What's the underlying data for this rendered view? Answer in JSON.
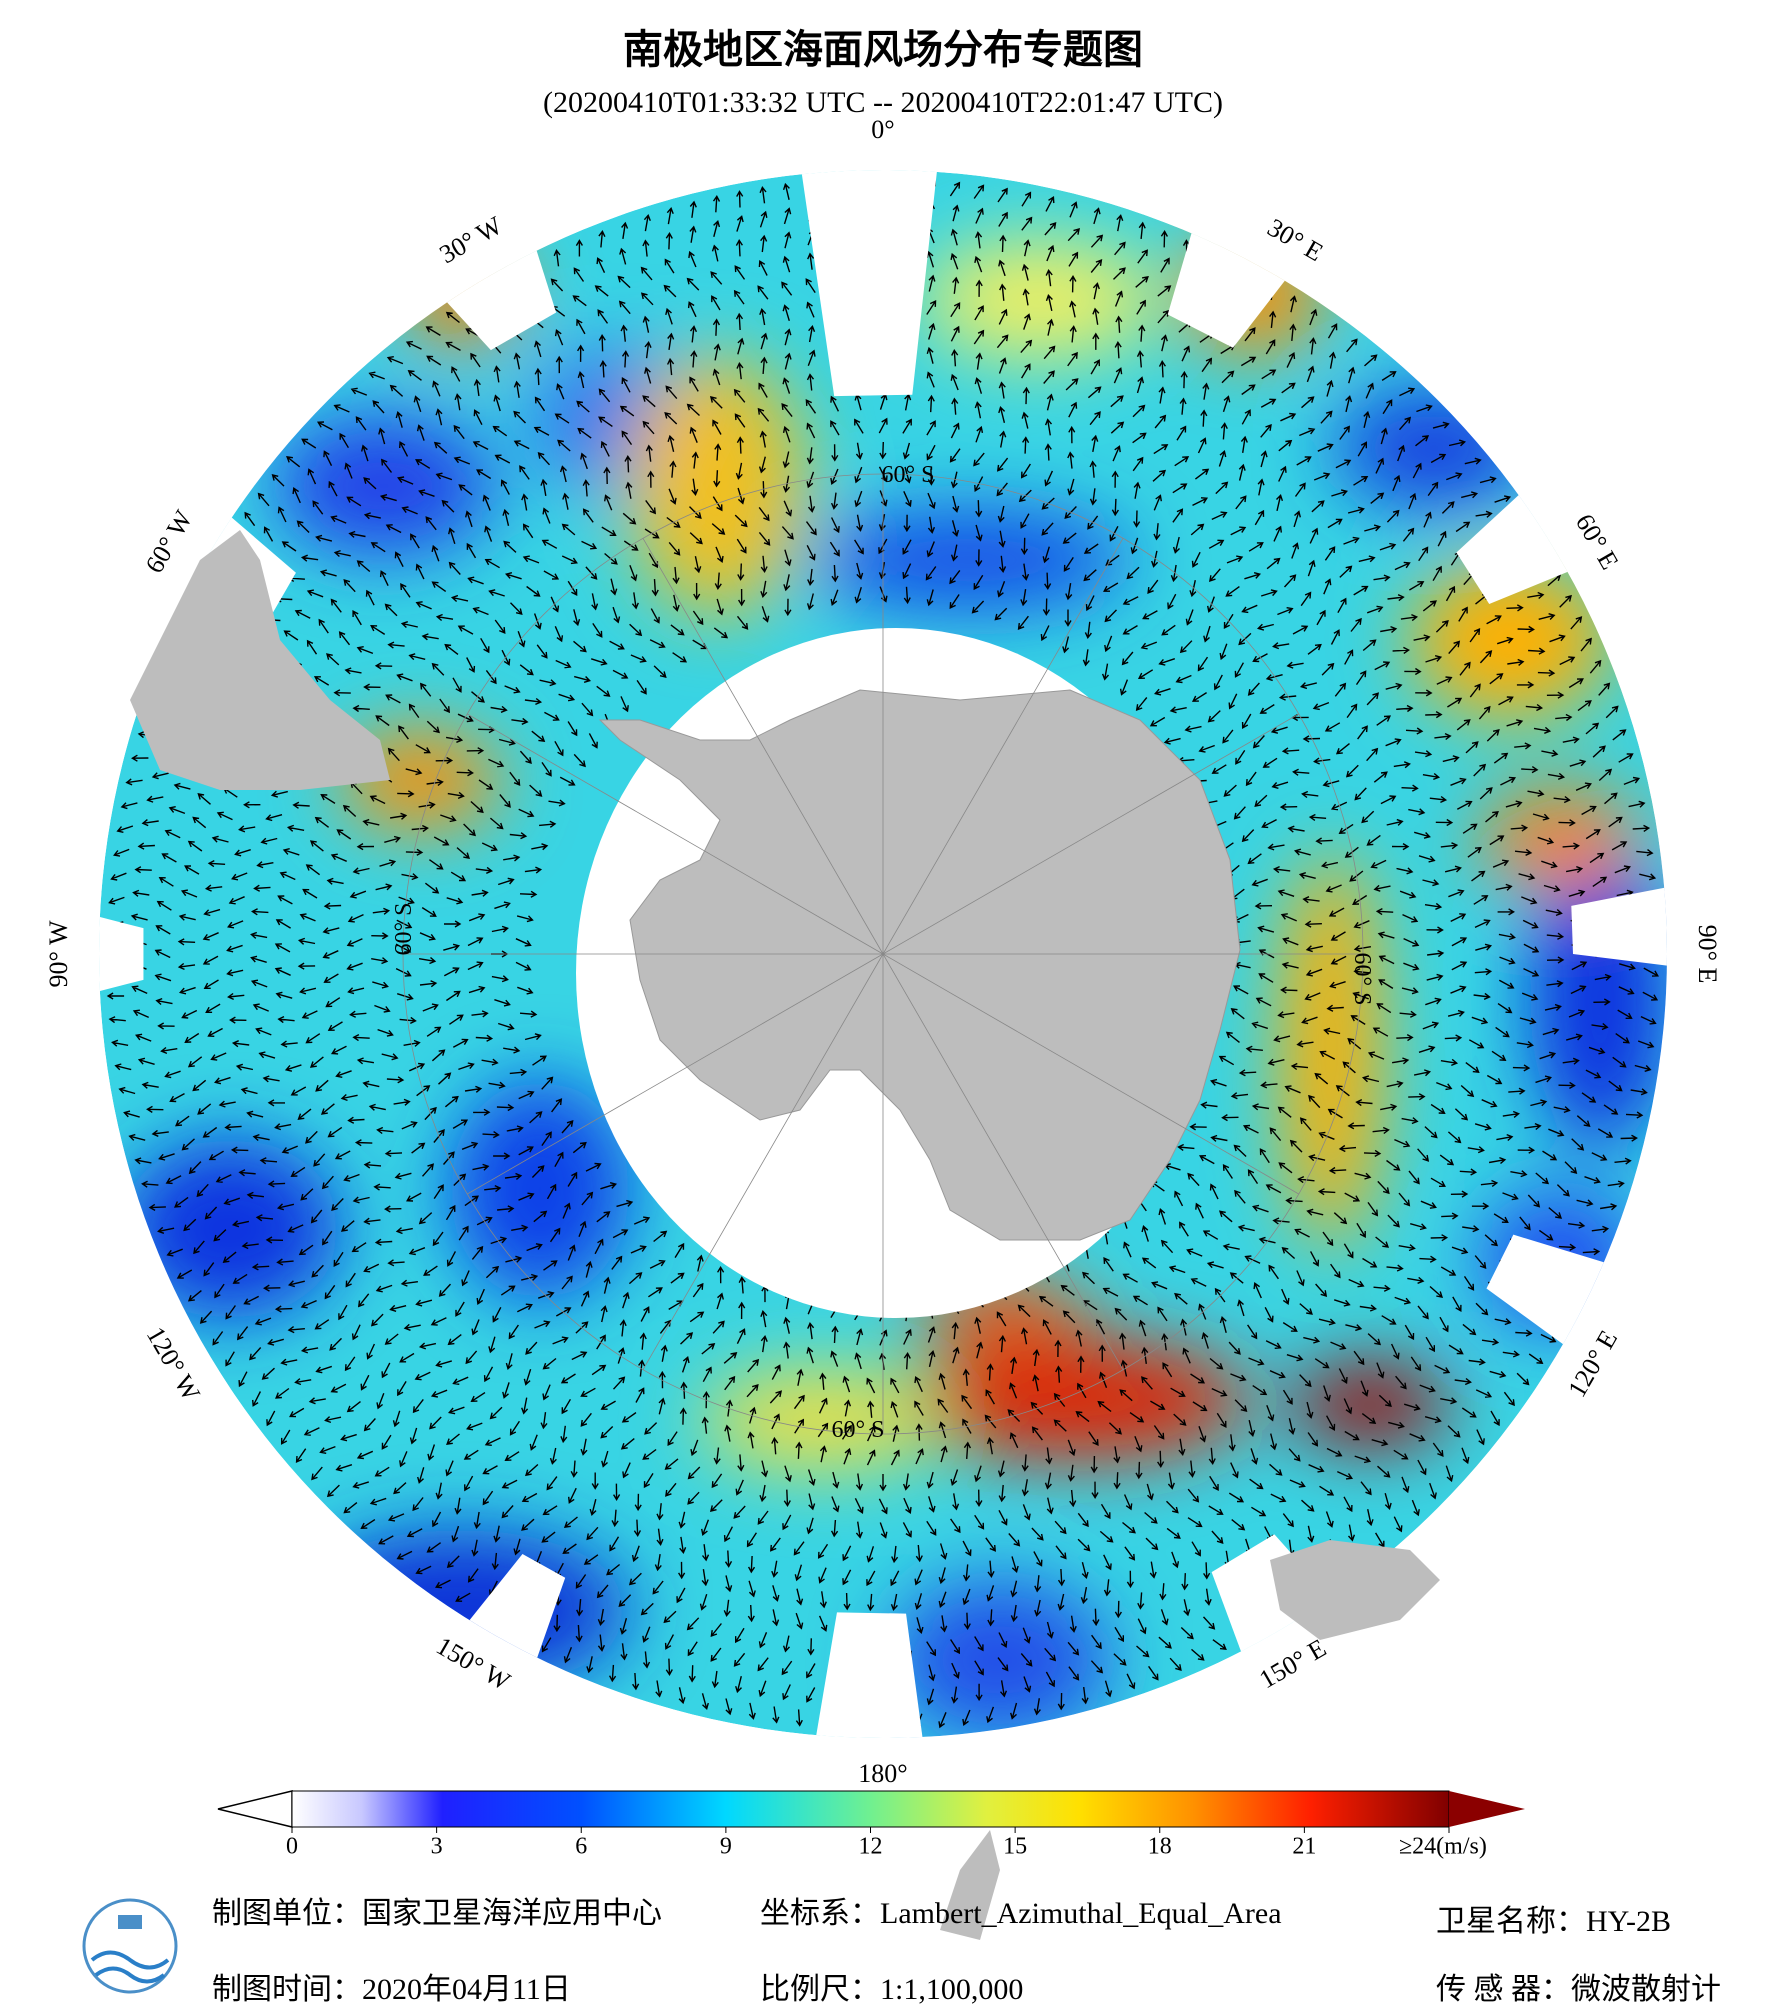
{
  "title": "南极地区海面风场分布专题图",
  "subtitle": "(20200410T01:33:32 UTC -- 20200410T22:01:47 UTC)",
  "longitude_labels": [
    "0°",
    "30° E",
    "60° E",
    "90° E",
    "120° E",
    "150° E",
    "180°",
    "150° W",
    "120° W",
    "90° W",
    "60° W",
    "30° W"
  ],
  "latitude_labels": [
    "60° S",
    "60° S",
    "60° S",
    "60° S"
  ],
  "colorbar": {
    "range": [
      0,
      24
    ],
    "ticks": [
      0,
      3,
      6,
      9,
      12,
      15,
      18,
      21,
      {
        "value": 24,
        "label": "≥24(m/s)"
      }
    ]
  },
  "footer": {
    "producer": "制图单位：国家卫星海洋应用中心",
    "date": "制图时间：2020年04月11日",
    "projection": "坐标系：Lambert_Azimuthal_Equal_Area",
    "scale": "比例尺：1:1,100,000",
    "satellite": "卫星名称：HY-2B",
    "sensor": "传 感 器：微波散射计"
  }
}
